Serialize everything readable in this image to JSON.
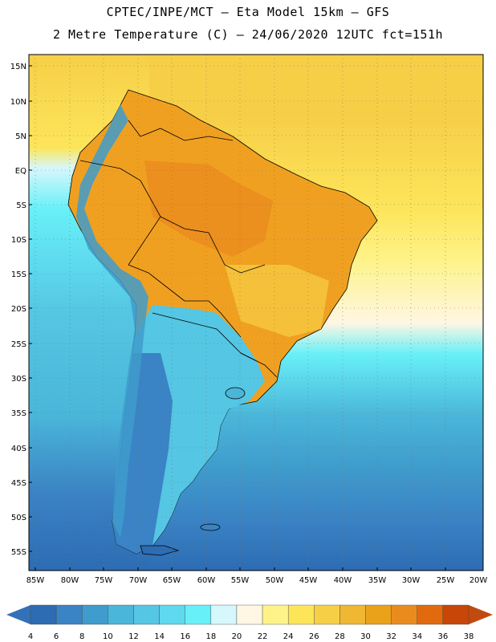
{
  "header": {
    "line1": "CPTEC/INPE/MCT —  Eta Model 15km — GFS",
    "line2": "2 Metre Temperature (C) — 24/06/2020 12UTC fct=151h"
  },
  "lat_labels": [
    "15N",
    "10N",
    "5N",
    "EQ",
    "5S",
    "10S",
    "15S",
    "20S",
    "25S",
    "30S",
    "35S",
    "40S",
    "45S",
    "50S",
    "55S"
  ],
  "lon_labels": [
    "85W",
    "80W",
    "75W",
    "70W",
    "65W",
    "60W",
    "55W",
    "50W",
    "45W",
    "40W",
    "35W",
    "30W",
    "25W",
    "20W"
  ],
  "legend": {
    "values": [
      "4",
      "6",
      "8",
      "10",
      "12",
      "14",
      "16",
      "18",
      "20",
      "22",
      "24",
      "26",
      "28",
      "30",
      "32",
      "34",
      "36",
      "38"
    ],
    "colors": [
      "#2d6cb3",
      "#3a83c4",
      "#3f9ccc",
      "#4ab6d9",
      "#55c6e3",
      "#5ed9ee",
      "#68f0f8",
      "#d6f7fc",
      "#fff6e3",
      "#fef389",
      "#fde55a",
      "#f6cf47",
      "#efb732",
      "#eaa21b",
      "#ea8c1d",
      "#e26a0e",
      "#c84608"
    ],
    "low_color": "#3371b8",
    "high_color": "#c14a10"
  },
  "colors": {
    "land_hot": "#f0a021",
    "land_warm": "#f2bf3a",
    "sea_warm": "#f8d45a",
    "sea_mild": "#fef08a",
    "sea_cool": "#4fd6ea",
    "sea_cold": "#2d6cb3",
    "andes": "#3b84c5"
  }
}
